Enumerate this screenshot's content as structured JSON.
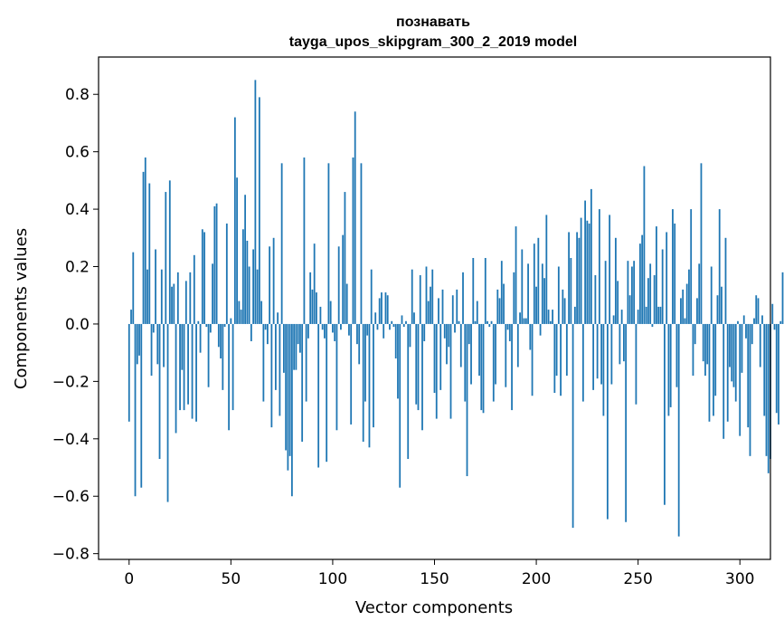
{
  "chart_data": {
    "type": "bar",
    "title": "познавать",
    "subtitle": "tayga_upos_skipgram_300_2_2019 model",
    "xlabel": "Vector components",
    "ylabel": "Components values",
    "xlim": [
      -15,
      315
    ],
    "ylim": [
      -0.82,
      0.93
    ],
    "xticks": [
      0,
      50,
      100,
      150,
      200,
      250,
      300
    ],
    "yticks": [
      -0.8,
      -0.6,
      -0.4,
      -0.2,
      0.0,
      0.2,
      0.4,
      0.6,
      0.8
    ],
    "ytick_labels": [
      "−0.8",
      "−0.6",
      "−0.4",
      "−0.2",
      "0.0",
      "0.2",
      "0.4",
      "0.6",
      "0.8"
    ],
    "bar_color": "#1f77b4",
    "values": [
      -0.34,
      0.05,
      0.25,
      -0.6,
      -0.14,
      -0.11,
      -0.57,
      0.53,
      0.58,
      0.19,
      0.49,
      -0.18,
      -0.03,
      0.26,
      -0.14,
      -0.47,
      0.19,
      -0.15,
      0.46,
      -0.62,
      0.5,
      0.13,
      0.14,
      -0.38,
      0.18,
      -0.3,
      -0.16,
      -0.3,
      0.15,
      -0.28,
      0.18,
      -0.33,
      0.24,
      -0.34,
      0.01,
      -0.1,
      0.33,
      0.32,
      -0.01,
      -0.22,
      -0.03,
      0.21,
      0.41,
      0.42,
      -0.08,
      -0.12,
      -0.23,
      -0.01,
      0.35,
      -0.37,
      0.02,
      -0.3,
      0.72,
      0.51,
      0.08,
      0.05,
      0.33,
      0.45,
      0.29,
      0.2,
      -0.06,
      0.26,
      0.85,
      0.19,
      0.79,
      0.08,
      -0.27,
      -0.02,
      -0.07,
      0.27,
      -0.36,
      0.3,
      -0.23,
      0.04,
      -0.32,
      0.56,
      -0.17,
      -0.44,
      -0.51,
      -0.46,
      -0.6,
      -0.16,
      -0.16,
      -0.07,
      -0.1,
      -0.41,
      0.58,
      -0.27,
      -0.05,
      0.18,
      0.12,
      0.28,
      0.11,
      -0.5,
      0.06,
      -0.02,
      -0.05,
      -0.48,
      0.56,
      0.08,
      -0.03,
      -0.06,
      -0.37,
      0.27,
      -0.02,
      0.31,
      0.46,
      0.14,
      -0.04,
      -0.35,
      0.58,
      0.74,
      -0.07,
      -0.14,
      0.56,
      -0.41,
      -0.27,
      -0.04,
      -0.43,
      0.19,
      -0.36,
      0.04,
      -0.02,
      0.09,
      0.11,
      -0.05,
      0.11,
      0.1,
      -0.02,
      0.01,
      -0.01,
      -0.12,
      -0.26,
      -0.57,
      0.03,
      -0.01,
      0.01,
      -0.47,
      -0.08,
      0.19,
      0.04,
      -0.28,
      -0.3,
      0.17,
      -0.37,
      -0.06,
      0.2,
      0.08,
      0.13,
      0.19,
      -0.24,
      -0.33,
      0.09,
      -0.23,
      0.12,
      -0.05,
      -0.14,
      -0.08,
      -0.33,
      0.1,
      -0.03,
      0.12,
      0.01,
      -0.15,
      0.18,
      -0.27,
      -0.53,
      -0.07,
      -0.21,
      0.23,
      0.01,
      0.08,
      -0.18,
      -0.3,
      -0.31,
      0.23,
      0.01,
      -0.01,
      0.01,
      -0.27,
      -0.21,
      0.12,
      0.09,
      0.22,
      0.14,
      -0.22,
      -0.02,
      -0.06,
      -0.3,
      0.18,
      0.34,
      -0.15,
      0.04,
      0.26,
      0.02,
      0.02,
      0.21,
      -0.09,
      -0.25,
      0.28,
      0.13,
      0.3,
      -0.04,
      0.21,
      0.16,
      0.38,
      0.05,
      0.01,
      0.05,
      -0.24,
      -0.18,
      0.2,
      -0.25,
      0.12,
      0.09,
      -0.18,
      0.32,
      0.23,
      -0.71,
      0.06,
      0.32,
      0.3,
      0.37,
      -0.27,
      0.43,
      0.36,
      0.35,
      0.47,
      -0.23,
      0.17,
      -0.19,
      0.4,
      -0.21,
      -0.32,
      0.22,
      -0.68,
      0.38,
      -0.21,
      0.03,
      0.3,
      0.15,
      -0.14,
      0.05,
      -0.13,
      -0.69,
      0.22,
      0.1,
      0.2,
      0.22,
      -0.28,
      0.05,
      0.28,
      0.31,
      0.55,
      0.06,
      0.16,
      0.21,
      -0.01,
      0.17,
      0.34,
      0.06,
      0.06,
      0.26,
      -0.63,
      0.32,
      -0.32,
      -0.29,
      0.4,
      0.35,
      -0.22,
      -0.74,
      0.09,
      0.12,
      0.02,
      0.14,
      0.19,
      0.4,
      -0.18,
      -0.07,
      0.09,
      0.21,
      0.56,
      -0.13,
      -0.18,
      -0.14,
      -0.34,
      0.2,
      -0.32,
      -0.25,
      0.1,
      0.4,
      0.13,
      -0.4,
      0.3,
      -0.34,
      -0.15,
      -0.2,
      -0.22,
      -0.27,
      0.01,
      -0.39,
      -0.17,
      0.03,
      -0.05,
      -0.36,
      -0.46,
      -0.07,
      0.02,
      0.1,
      0.09,
      -0.15,
      0.03,
      -0.32,
      -0.46,
      -0.52,
      -0.47,
      0.07,
      -0.02,
      -0.31,
      -0.35,
      0.01,
      0.18
    ]
  }
}
